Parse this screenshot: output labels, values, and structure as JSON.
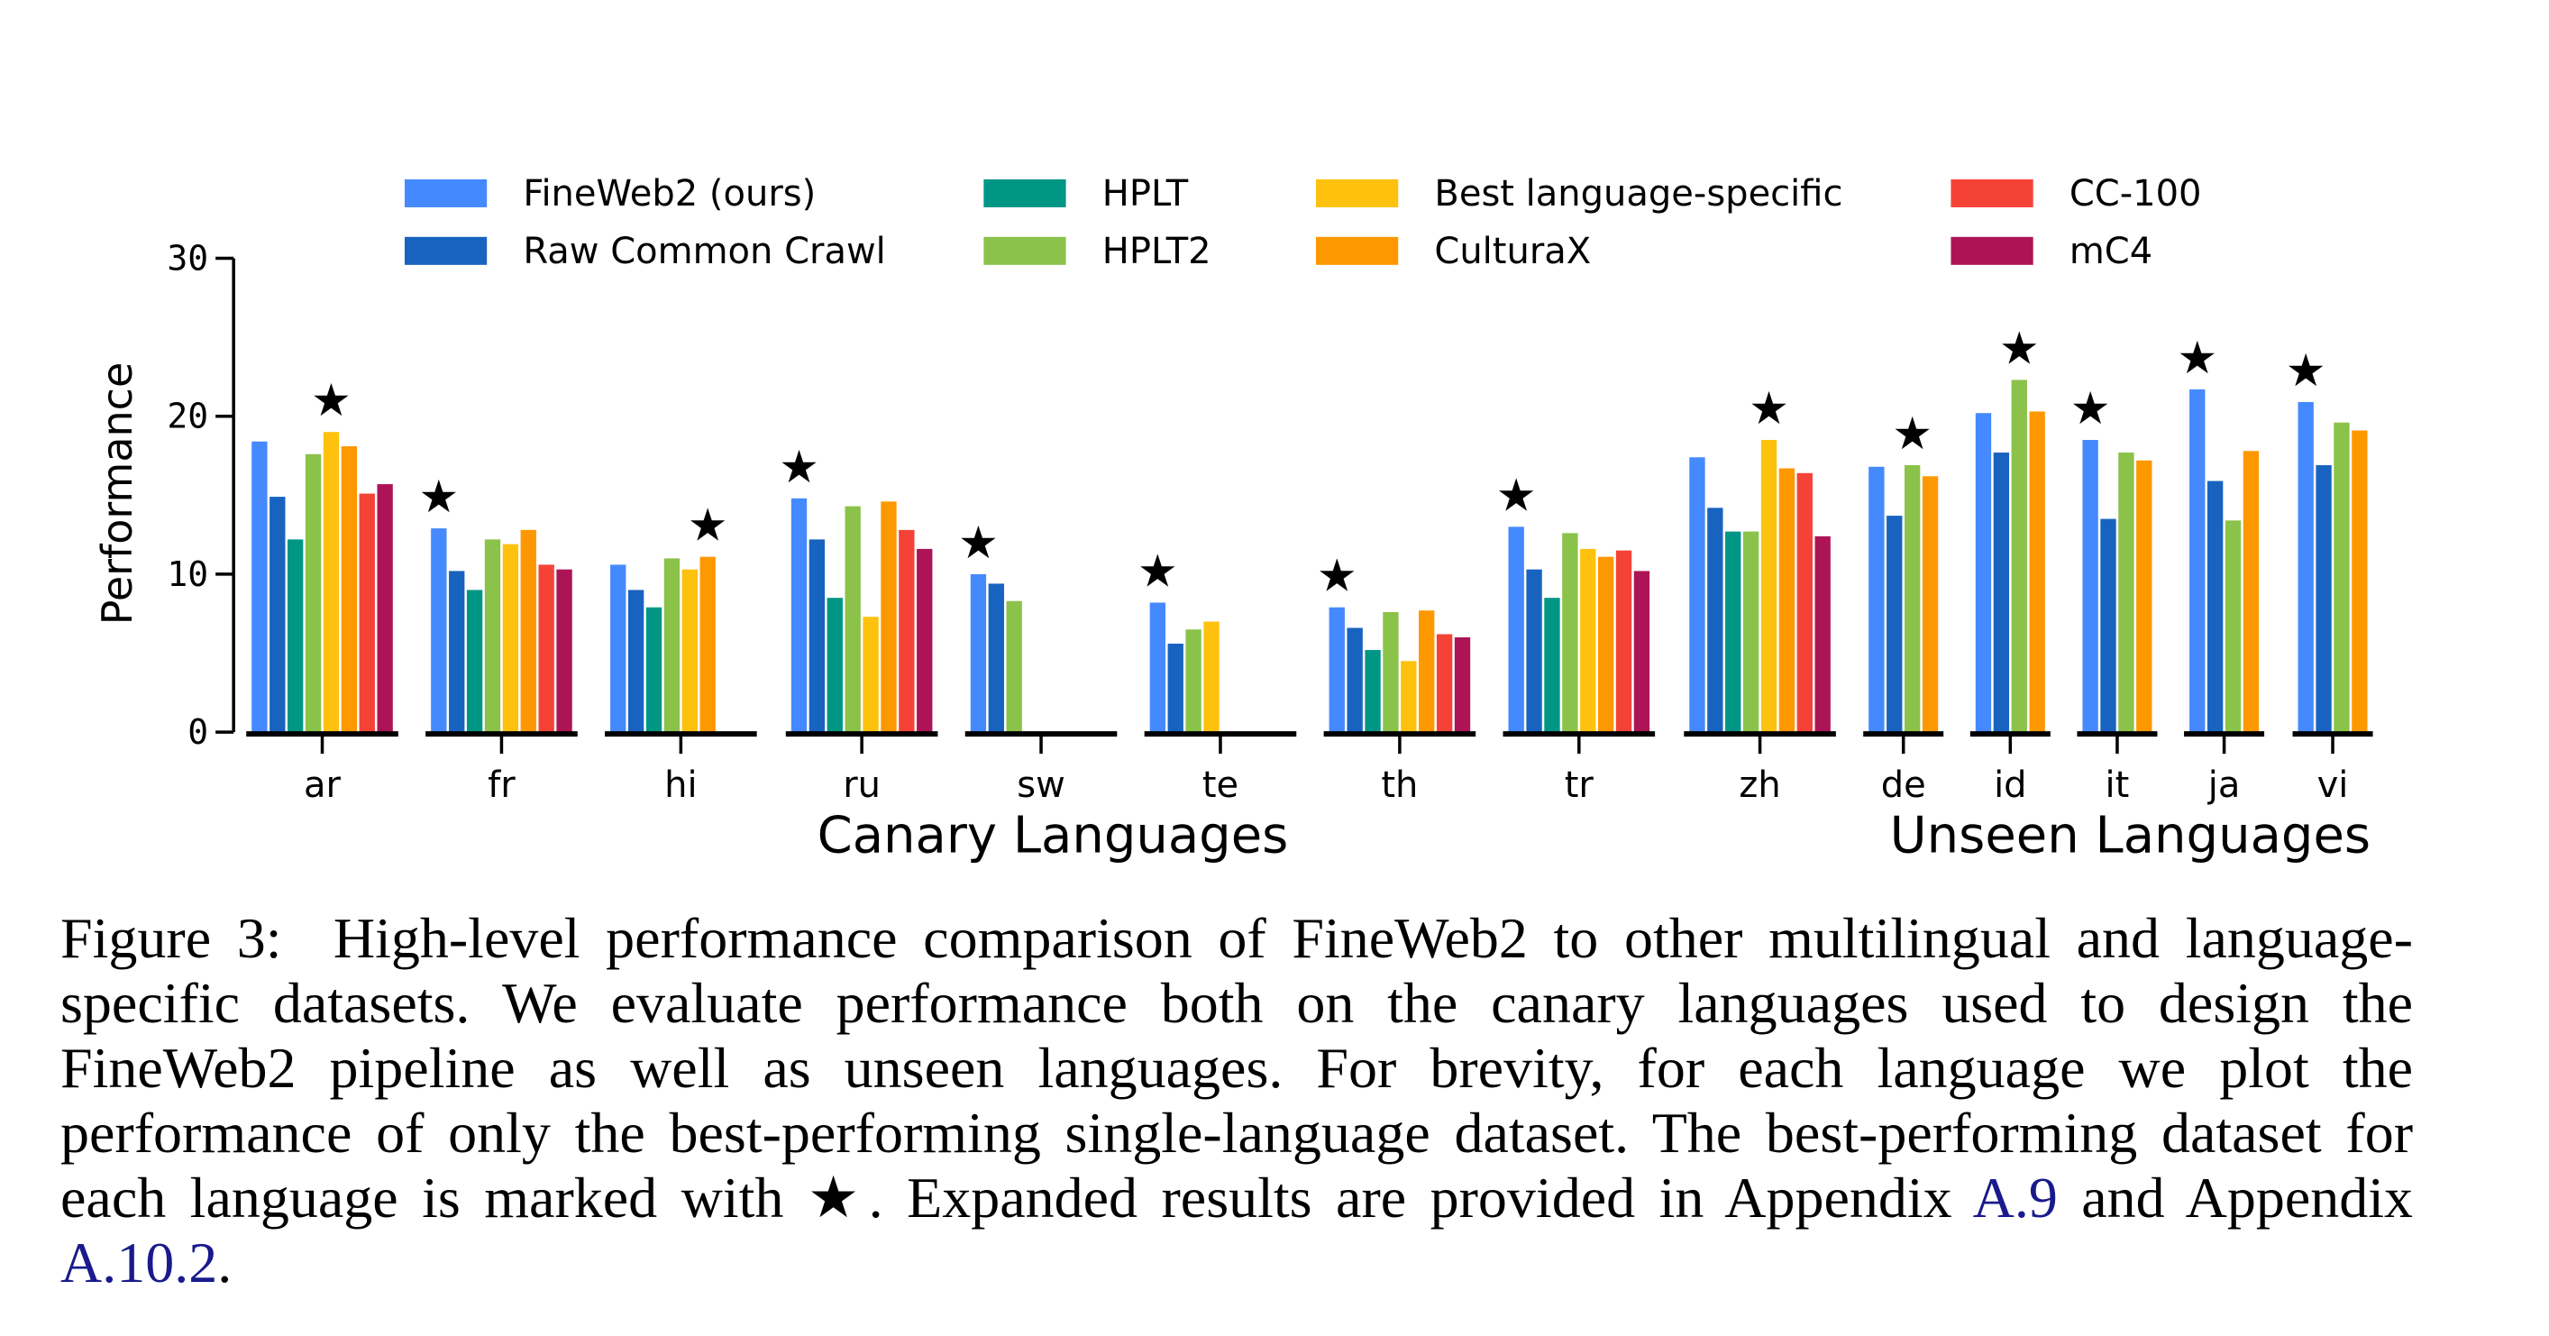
{
  "chart_data": {
    "type": "bar",
    "title": "",
    "xlabel_groups": [
      "Canary Languages",
      "Unseen Languages"
    ],
    "ylabel": "Performance",
    "ylim": [
      0,
      30
    ],
    "yticks": [
      0,
      10,
      20,
      30
    ],
    "grid": false,
    "legend_position": "top",
    "categories": [
      "ar",
      "fr",
      "hi",
      "ru",
      "sw",
      "te",
      "th",
      "tr",
      "zh",
      "de",
      "id",
      "it",
      "ja",
      "vi"
    ],
    "category_groups": {
      "Canary Languages": [
        "ar",
        "fr",
        "hi",
        "ru",
        "sw",
        "te",
        "th",
        "tr",
        "zh"
      ],
      "Unseen Languages": [
        "de",
        "id",
        "it",
        "ja",
        "vi"
      ]
    },
    "series": [
      {
        "name": "FineWeb2 (ours)",
        "color": "#4589FF",
        "values": [
          18.4,
          12.9,
          10.6,
          14.8,
          10.0,
          8.2,
          7.9,
          13.0,
          17.4,
          16.8,
          20.2,
          18.5,
          21.7,
          20.9
        ]
      },
      {
        "name": "Raw Common Crawl",
        "color": "#1863C0",
        "values": [
          14.9,
          10.2,
          9.0,
          12.2,
          9.4,
          5.6,
          6.6,
          10.3,
          14.2,
          13.7,
          17.7,
          13.5,
          15.9,
          16.9
        ]
      },
      {
        "name": "HPLT",
        "color": "#009685",
        "values": [
          12.2,
          9.0,
          7.9,
          8.5,
          null,
          null,
          5.2,
          8.5,
          12.7,
          null,
          null,
          null,
          null,
          null
        ]
      },
      {
        "name": "HPLT2",
        "color": "#8BC24A",
        "values": [
          17.6,
          12.2,
          11.0,
          14.3,
          8.3,
          6.5,
          7.6,
          12.6,
          12.7,
          16.9,
          22.3,
          17.7,
          13.4,
          19.6
        ]
      },
      {
        "name": "Best language-specific",
        "color": "#FEC10E",
        "values": [
          19.0,
          11.9,
          10.3,
          7.3,
          null,
          7.0,
          4.5,
          11.6,
          18.5,
          null,
          null,
          null,
          null,
          null
        ]
      },
      {
        "name": "CulturaX",
        "color": "#FE9800",
        "values": [
          18.1,
          12.8,
          11.1,
          14.6,
          null,
          null,
          7.7,
          11.1,
          16.7,
          16.2,
          20.3,
          17.2,
          17.8,
          19.1
        ]
      },
      {
        "name": "CC-100",
        "color": "#F44336",
        "values": [
          15.1,
          10.6,
          null,
          12.8,
          null,
          null,
          6.2,
          11.5,
          16.4,
          null,
          null,
          null,
          null,
          null
        ]
      },
      {
        "name": "mC4",
        "color": "#AD1456",
        "values": [
          15.7,
          10.3,
          null,
          11.6,
          null,
          null,
          6.0,
          10.2,
          12.4,
          null,
          null,
          null,
          null,
          null
        ]
      }
    ],
    "best_marker": {
      "symbol": "★",
      "best_series_per_category": [
        "Best language-specific",
        "FineWeb2 (ours)",
        "CulturaX",
        "FineWeb2 (ours)",
        "FineWeb2 (ours)",
        "FineWeb2 (ours)",
        "FineWeb2 (ours)",
        "FineWeb2 (ours)",
        "Best language-specific",
        "HPLT2",
        "HPLT2",
        "FineWeb2 (ours)",
        "FineWeb2 (ours)",
        "FineWeb2 (ours)"
      ]
    }
  },
  "caption": {
    "label": "Figure 3:",
    "text_1": "High-level performance comparison of FineWeb2 to other multilingual and language-specific datasets. We evaluate performance both on the canary languages used to design the FineWeb2 pipeline as well as unseen languages. For brevity, for each language we plot the performance of only the best-performing single-language dataset. The best-performing dataset for each language is marked with ★. Expanded results are provided in Appendix ",
    "link_1": "A.9",
    "text_2": " and Appendix ",
    "link_2": "A.10.2",
    "text_3": "."
  }
}
